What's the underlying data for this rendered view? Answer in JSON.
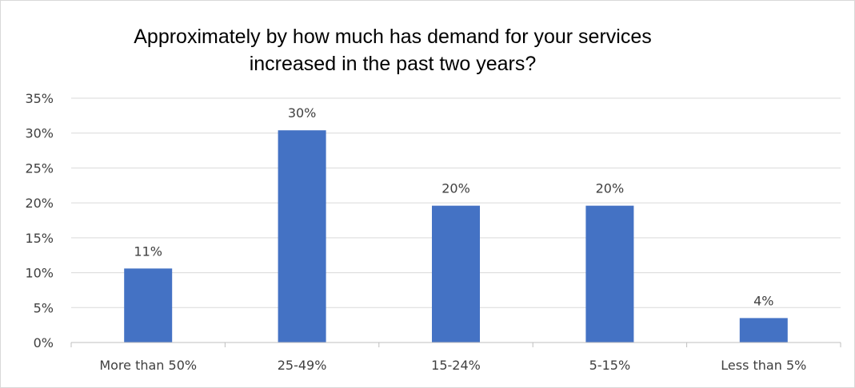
{
  "chart_data": {
    "type": "bar",
    "title_lines": [
      "Approximately by how much has demand for your services",
      "increased in the past two years?"
    ],
    "categories": [
      "More than 50%",
      "25-49%",
      "15-24%",
      "5-15%",
      "Less than 5%"
    ],
    "values": [
      10.6,
      30.4,
      19.6,
      19.6,
      3.5
    ],
    "data_labels": [
      "11%",
      "30%",
      "20%",
      "20%",
      "4%"
    ],
    "xlabel": "",
    "ylabel": "",
    "ylim": [
      0,
      35
    ],
    "yticks": [
      0,
      5,
      10,
      15,
      20,
      25,
      30,
      35
    ],
    "ytick_labels": [
      "0%",
      "5%",
      "10%",
      "15%",
      "20%",
      "25%",
      "30%",
      "35%"
    ],
    "grid": true,
    "legend": "none",
    "colors": {
      "bar": "#4472c4",
      "grid": "#d9d9d9",
      "axis": "#bfbfbf",
      "text": "#404040"
    }
  }
}
